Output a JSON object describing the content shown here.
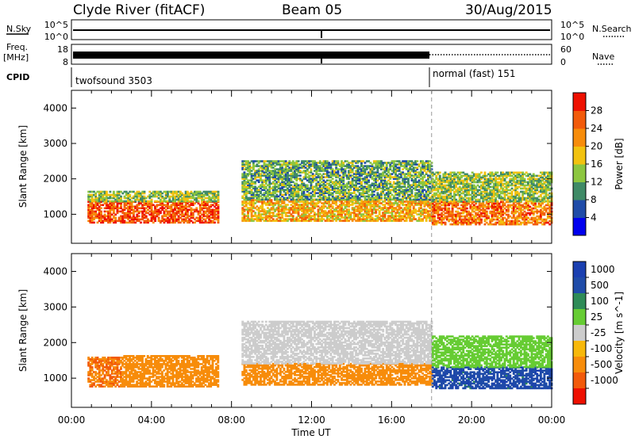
{
  "header": {
    "station": "Clyde River (fitACF)",
    "beam": "Beam 05",
    "date": "30/Aug/2015"
  },
  "panels": {
    "nsky_label": "N.Sky",
    "nsearch_label": "N.Search",
    "freq_label": "Freq.",
    "freq_unit": "[MHz]",
    "nave_label": "Nave",
    "cpid_label": "CPID",
    "nsky_ticks": [
      "10^5",
      "10^0"
    ],
    "freq_ticks": [
      "18",
      "8"
    ],
    "nave_ticks": [
      "60",
      "0"
    ],
    "cpid_segments": [
      {
        "label": "twofsound 3503",
        "start": 0.0
      },
      {
        "label": "normal (fast) 151",
        "start": 18.0
      }
    ]
  },
  "colors": {
    "power": [
      "#0000ee",
      "#1f4ba8",
      "#3f8a66",
      "#8cc63f",
      "#f2c20f",
      "#f78c0a",
      "#f25a0a",
      "#ee1000"
    ],
    "velocity": [
      "#ee1000",
      "#f25a0a",
      "#f78c0a",
      "#f7b80a",
      "#cccccc",
      "#66cc33",
      "#2e8b57",
      "#1f4ba8",
      "#1a3fb0"
    ]
  },
  "chart_data": [
    {
      "type": "heatmap",
      "name": "Power",
      "ylabel": "Slant Range [km]",
      "xlabel": "Time UT",
      "xlim": [
        0,
        24
      ],
      "ylim": [
        180,
        4500
      ],
      "x_ticks": [
        "00:00",
        "04:00",
        "08:00",
        "12:00",
        "16:00",
        "20:00",
        "00:00"
      ],
      "y_ticks": [
        1000,
        2000,
        3000,
        4000
      ],
      "colorbar": {
        "label": "Power [dB]",
        "ticks": [
          4,
          8,
          12,
          16,
          20,
          24,
          28
        ],
        "range": [
          0,
          32
        ]
      },
      "bands": [
        {
          "t0": 0.8,
          "t1": 7.3,
          "r0": 750,
          "r1": 1350,
          "value": 26
        },
        {
          "t0": 0.8,
          "t1": 7.3,
          "r0": 1350,
          "r1": 1650,
          "value": 14
        },
        {
          "t0": 8.5,
          "t1": 18.0,
          "r0": 800,
          "r1": 1400,
          "value": 20
        },
        {
          "t0": 8.5,
          "t1": 18.0,
          "r0": 1400,
          "r1": 2500,
          "value": 12
        },
        {
          "t0": 18.0,
          "t1": 24.0,
          "r0": 700,
          "r1": 1350,
          "value": 24
        },
        {
          "t0": 18.0,
          "t1": 24.0,
          "r0": 1350,
          "r1": 2200,
          "value": 14
        }
      ],
      "marker_time": 18.0
    },
    {
      "type": "heatmap",
      "name": "Velocity",
      "ylabel": "Slant Range [km]",
      "xlabel": "Time UT",
      "xlim": [
        0,
        24
      ],
      "ylim": [
        180,
        4500
      ],
      "x_ticks": [
        "00:00",
        "04:00",
        "08:00",
        "12:00",
        "16:00",
        "20:00",
        "00:00"
      ],
      "y_ticks": [
        1000,
        2000,
        3000,
        4000
      ],
      "colorbar": {
        "label": "Velocity [m s^-1]",
        "ticks": [
          "1000",
          "500",
          "100",
          "25",
          "-25",
          "-100",
          "-500",
          "-1000"
        ]
      },
      "bands": [
        {
          "t0": 0.8,
          "t1": 2.5,
          "r0": 750,
          "r1": 1600,
          "value": -500
        },
        {
          "t0": 2.5,
          "t1": 7.3,
          "r0": 750,
          "r1": 1650,
          "value": -300
        },
        {
          "t0": 8.5,
          "t1": 18.0,
          "r0": 800,
          "r1": 1400,
          "value": -200
        },
        {
          "t0": 8.5,
          "t1": 18.0,
          "r0": 1400,
          "r1": 2600,
          "value": 0
        },
        {
          "t0": 18.0,
          "t1": 24.0,
          "r0": 700,
          "r1": 1300,
          "value": 800
        },
        {
          "t0": 18.0,
          "t1": 24.0,
          "r0": 1300,
          "r1": 2200,
          "value": 60
        }
      ],
      "marker_time": 18.0
    }
  ]
}
